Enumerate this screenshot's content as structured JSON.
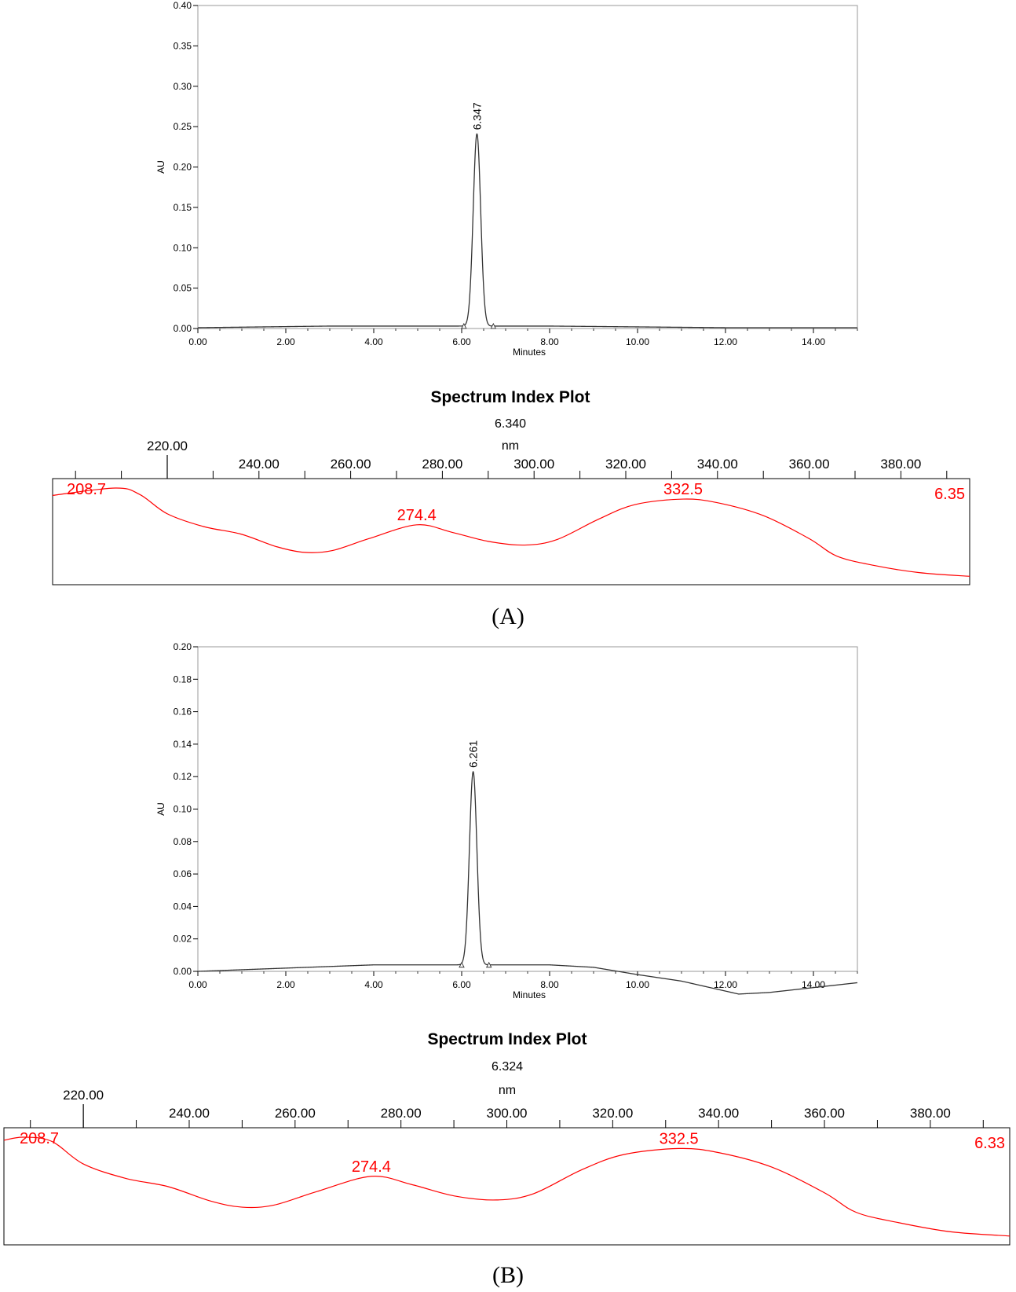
{
  "chart_data": [
    {
      "type": "line",
      "panel": "A",
      "xlabel": "Minutes",
      "ylabel": "AU",
      "xlim": [
        0,
        15
      ],
      "ylim": [
        0,
        0.4
      ],
      "xticks": [
        "0.00",
        "2.00",
        "4.00",
        "6.00",
        "8.00",
        "10.00",
        "12.00",
        "14.00"
      ],
      "yticks": [
        "0.00",
        "0.05",
        "0.10",
        "0.15",
        "0.20",
        "0.25",
        "0.30",
        "0.35",
        "0.40"
      ],
      "peak": {
        "label": "6.347",
        "x": 6.347,
        "y": 0.241
      },
      "integration_marks": [
        6.05,
        6.72
      ],
      "baseline": [
        [
          0,
          0.001
        ],
        [
          3,
          0.003
        ],
        [
          6,
          0.003
        ],
        [
          8,
          0.003
        ],
        [
          10,
          0.002
        ],
        [
          12,
          0.001
        ],
        [
          15,
          0.001
        ]
      ]
    },
    {
      "type": "line",
      "panel": "A-spectrum",
      "title": "Spectrum Index Plot",
      "subtitle": "6.340",
      "xlabel": "nm",
      "xticks": [
        "220.00",
        "240.00",
        "260.00",
        "280.00",
        "300.00",
        "320.00",
        "340.00",
        "360.00",
        "380.00"
      ],
      "xlim": [
        195,
        395
      ],
      "maxima": [
        {
          "label": "208.7",
          "x": 208.7
        },
        {
          "label": "274.4",
          "x": 274.4
        },
        {
          "label": "332.5",
          "x": 332.5
        }
      ],
      "retention_label": "6.35",
      "spectrum": [
        [
          195,
          0.92
        ],
        [
          208.7,
          1.0
        ],
        [
          214,
          0.93
        ],
        [
          220,
          0.72
        ],
        [
          228,
          0.58
        ],
        [
          236,
          0.5
        ],
        [
          244,
          0.36
        ],
        [
          250,
          0.3
        ],
        [
          256,
          0.32
        ],
        [
          264,
          0.45
        ],
        [
          274.4,
          0.6
        ],
        [
          282,
          0.52
        ],
        [
          290,
          0.42
        ],
        [
          298,
          0.38
        ],
        [
          305,
          0.44
        ],
        [
          314,
          0.66
        ],
        [
          322,
          0.82
        ],
        [
          332.5,
          0.88
        ],
        [
          340,
          0.84
        ],
        [
          350,
          0.7
        ],
        [
          360,
          0.45
        ],
        [
          366,
          0.26
        ],
        [
          374,
          0.16
        ],
        [
          384,
          0.08
        ],
        [
          395,
          0.04
        ]
      ]
    },
    {
      "type": "line",
      "panel": "B",
      "xlabel": "Minutes",
      "ylabel": "AU",
      "xlim": [
        0,
        15
      ],
      "ylim": [
        0,
        0.2
      ],
      "xticks": [
        "0.00",
        "2.00",
        "4.00",
        "6.00",
        "8.00",
        "10.00",
        "12.00",
        "14.00"
      ],
      "yticks": [
        "0.00",
        "0.02",
        "0.04",
        "0.06",
        "0.08",
        "0.10",
        "0.12",
        "0.14",
        "0.16",
        "0.18",
        "0.20"
      ],
      "peak": {
        "label": "6.261",
        "x": 6.261,
        "y": 0.123
      },
      "integration_marks": [
        6.0,
        6.62
      ],
      "baseline": [
        [
          0,
          0.0
        ],
        [
          2,
          0.002
        ],
        [
          3,
          0.003
        ],
        [
          4,
          0.004
        ],
        [
          6,
          0.004
        ],
        [
          8,
          0.004
        ],
        [
          9,
          0.0025
        ],
        [
          10,
          -0.002
        ],
        [
          11,
          -0.006
        ],
        [
          12.3,
          -0.014
        ],
        [
          13,
          -0.013
        ],
        [
          14,
          -0.01
        ],
        [
          15,
          -0.007
        ]
      ]
    },
    {
      "type": "line",
      "panel": "B-spectrum",
      "title": "Spectrum Index Plot",
      "subtitle": "6.324",
      "xlabel": "nm",
      "xticks": [
        "220.00",
        "240.00",
        "260.00",
        "280.00",
        "300.00",
        "320.00",
        "340.00",
        "360.00",
        "380.00"
      ],
      "xlim": [
        205,
        395
      ],
      "maxima": [
        {
          "label": "208.7",
          "x": 208.7
        },
        {
          "label": "274.4",
          "x": 274.4
        },
        {
          "label": "332.5",
          "x": 332.5
        }
      ],
      "retention_label": "6.33",
      "spectrum": [
        [
          205,
          0.97
        ],
        [
          208.7,
          1.0
        ],
        [
          214,
          0.96
        ],
        [
          220,
          0.74
        ],
        [
          228,
          0.6
        ],
        [
          236,
          0.52
        ],
        [
          244,
          0.38
        ],
        [
          250,
          0.32
        ],
        [
          256,
          0.34
        ],
        [
          264,
          0.47
        ],
        [
          274.4,
          0.62
        ],
        [
          282,
          0.54
        ],
        [
          290,
          0.43
        ],
        [
          298,
          0.39
        ],
        [
          305,
          0.45
        ],
        [
          314,
          0.68
        ],
        [
          322,
          0.83
        ],
        [
          332.5,
          0.89
        ],
        [
          340,
          0.85
        ],
        [
          350,
          0.71
        ],
        [
          360,
          0.46
        ],
        [
          366,
          0.27
        ],
        [
          374,
          0.17
        ],
        [
          384,
          0.08
        ],
        [
          395,
          0.04
        ]
      ]
    }
  ],
  "panel_labels": [
    "(A)",
    "(B)"
  ]
}
